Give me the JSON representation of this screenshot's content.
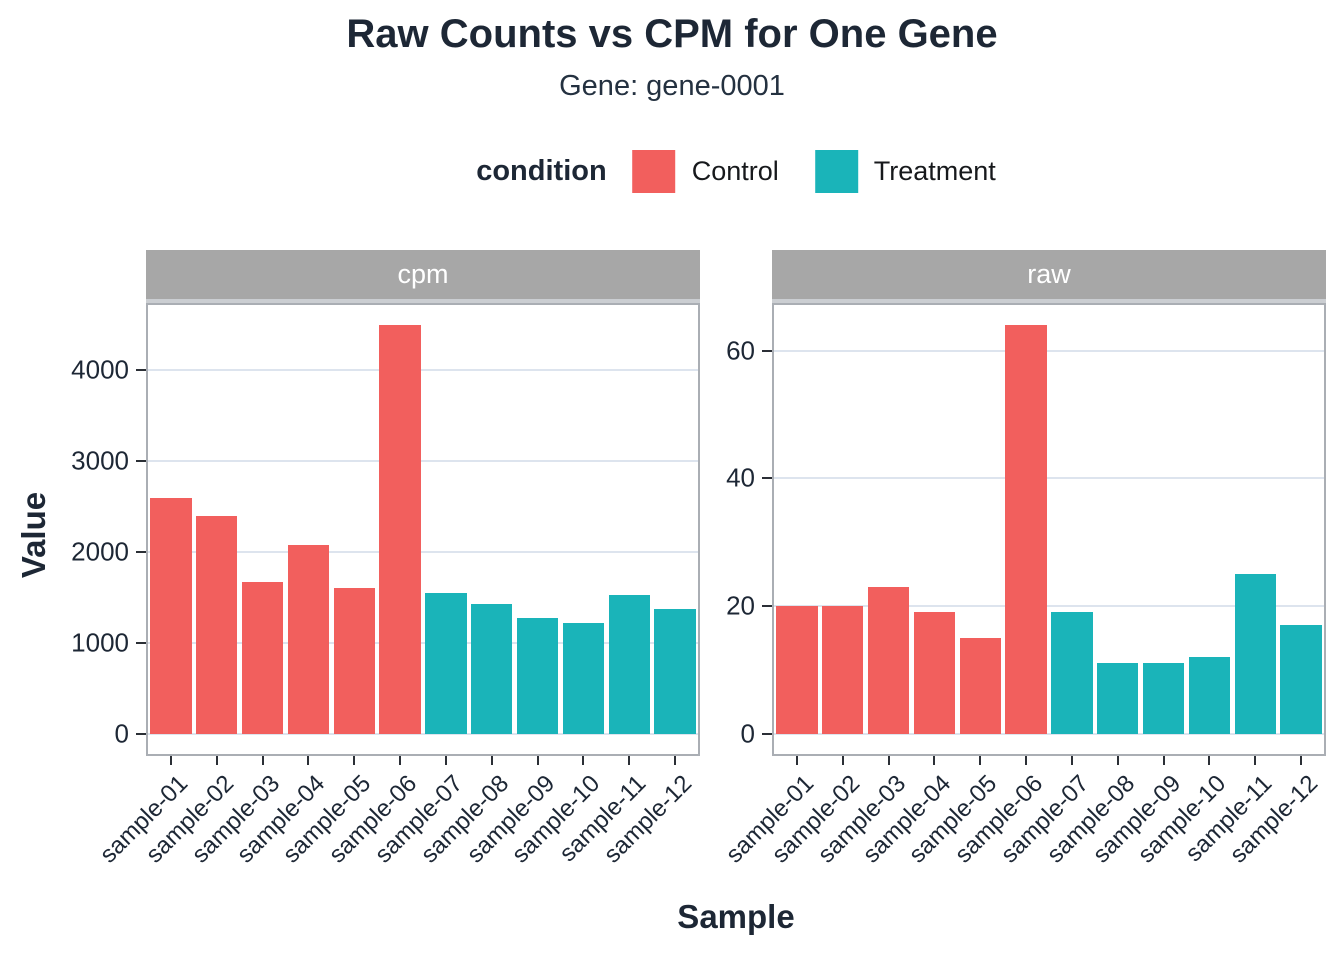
{
  "header": {
    "title": "Raw Counts vs CPM for One Gene",
    "subtitle": "Gene: gene-0001"
  },
  "legend": {
    "title": "condition",
    "items": [
      {
        "label": "Control",
        "color": "#F25F5D"
      },
      {
        "label": "Treatment",
        "color": "#1AB4B9"
      }
    ]
  },
  "axes": {
    "y_title": "Value",
    "x_title": "Sample"
  },
  "chart_data": {
    "type": "bar",
    "title": "Raw Counts vs CPM for One Gene",
    "subtitle": "Gene: gene-0001",
    "xlabel": "Sample",
    "ylabel": "Value",
    "legend_position": "top",
    "grid": "major-horizontal",
    "categories": [
      "sample-01",
      "sample-02",
      "sample-03",
      "sample-04",
      "sample-05",
      "sample-06",
      "sample-07",
      "sample-08",
      "sample-09",
      "sample-10",
      "sample-11",
      "sample-12"
    ],
    "conditions": [
      "Control",
      "Control",
      "Control",
      "Control",
      "Control",
      "Control",
      "Treatment",
      "Treatment",
      "Treatment",
      "Treatment",
      "Treatment",
      "Treatment"
    ],
    "facets": [
      {
        "label": "cpm",
        "yticks": [
          0,
          1000,
          2000,
          3000,
          4000
        ],
        "ylim": [
          0,
          4935
        ],
        "ymax_data": 4485,
        "values": [
          2590,
          2390,
          1665,
          2070,
          1595,
          4485,
          1545,
          1425,
          1275,
          1220,
          1520,
          1370
        ]
      },
      {
        "label": "raw",
        "yticks": [
          0,
          20,
          40,
          60
        ],
        "ylim": [
          0,
          70.4
        ],
        "ymax_data": 64,
        "values": [
          20,
          20,
          23,
          19,
          15,
          64,
          19,
          11,
          11,
          12,
          25,
          17
        ]
      }
    ],
    "colors": {
      "Control": "#F25F5D",
      "Treatment": "#1AB4B9"
    }
  }
}
